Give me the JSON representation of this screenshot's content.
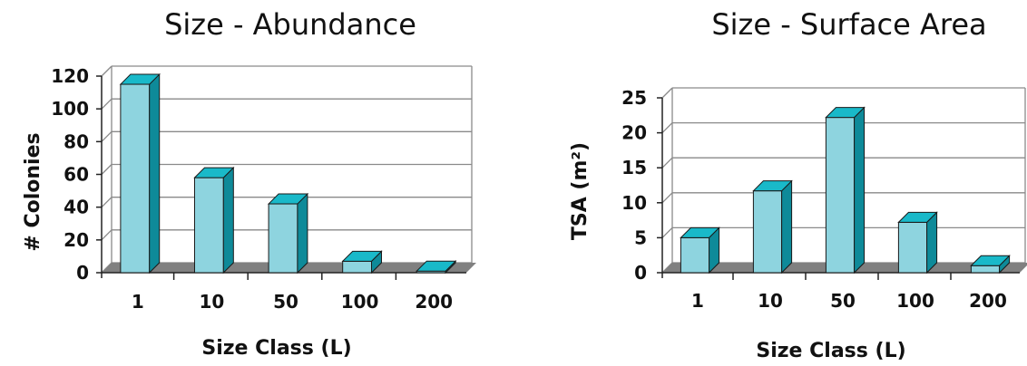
{
  "chart_data": [
    {
      "type": "bar",
      "title": "Size - Abundance",
      "xlabel": "Size Class (L)",
      "ylabel": "# Colonies",
      "categories": [
        "1",
        "10",
        "50",
        "100",
        "200"
      ],
      "values": [
        115,
        58,
        42,
        7,
        1
      ],
      "ylim": [
        0,
        120
      ],
      "yticks": [
        "0",
        "20",
        "40",
        "60",
        "80",
        "100",
        "120"
      ],
      "grid": true,
      "bar_color": "#8ed4df",
      "bar_side_color": "#0e8a99",
      "bar_top_color": "#19b9c9",
      "floor_color": "#808080"
    },
    {
      "type": "bar",
      "title": "Size - Surface Area",
      "xlabel": "Size Class (L)",
      "ylabel": "TSA (m²)",
      "categories": [
        "1",
        "10",
        "50",
        "100",
        "200"
      ],
      "values": [
        5,
        11.7,
        22.2,
        7.2,
        1
      ],
      "ylim": [
        0,
        25
      ],
      "yticks": [
        "0",
        "5",
        "10",
        "15",
        "20",
        "25"
      ],
      "grid": true,
      "bar_color": "#8ed4df",
      "bar_side_color": "#0e8a99",
      "bar_top_color": "#19b9c9",
      "floor_color": "#808080"
    }
  ]
}
